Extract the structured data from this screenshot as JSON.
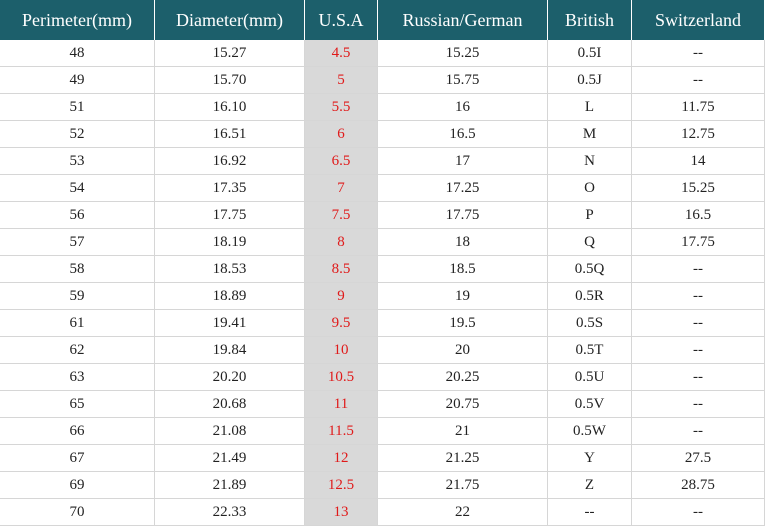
{
  "table": {
    "headers": [
      "Perimeter(mm)",
      "Diameter(mm)",
      "U.S.A",
      "Russian/German",
      "British",
      "Switzerland"
    ],
    "rows": [
      [
        "48",
        "15.27",
        "4.5",
        "15.25",
        "0.5I",
        "--"
      ],
      [
        "49",
        "15.70",
        "5",
        "15.75",
        "0.5J",
        "--"
      ],
      [
        "51",
        "16.10",
        "5.5",
        "16",
        "L",
        "11.75"
      ],
      [
        "52",
        "16.51",
        "6",
        "16.5",
        "M",
        "12.75"
      ],
      [
        "53",
        "16.92",
        "6.5",
        "17",
        "N",
        "14"
      ],
      [
        "54",
        "17.35",
        "7",
        "17.25",
        "O",
        "15.25"
      ],
      [
        "56",
        "17.75",
        "7.5",
        "17.75",
        "P",
        "16.5"
      ],
      [
        "57",
        "18.19",
        "8",
        "18",
        "Q",
        "17.75"
      ],
      [
        "58",
        "18.53",
        "8.5",
        "18.5",
        "0.5Q",
        "--"
      ],
      [
        "59",
        "18.89",
        "9",
        "19",
        "0.5R",
        "--"
      ],
      [
        "61",
        "19.41",
        "9.5",
        "19.5",
        "0.5S",
        "--"
      ],
      [
        "62",
        "19.84",
        "10",
        "20",
        "0.5T",
        "--"
      ],
      [
        "63",
        "20.20",
        "10.5",
        "20.25",
        "0.5U",
        "--"
      ],
      [
        "65",
        "20.68",
        "11",
        "20.75",
        "0.5V",
        "--"
      ],
      [
        "66",
        "21.08",
        "11.5",
        "21",
        "0.5W",
        "--"
      ],
      [
        "67",
        "21.49",
        "12",
        "21.25",
        "Y",
        "27.5"
      ],
      [
        "69",
        "21.89",
        "12.5",
        "21.75",
        "Z",
        "28.75"
      ],
      [
        "70",
        "22.33",
        "13",
        "22",
        "--",
        "--"
      ]
    ]
  }
}
